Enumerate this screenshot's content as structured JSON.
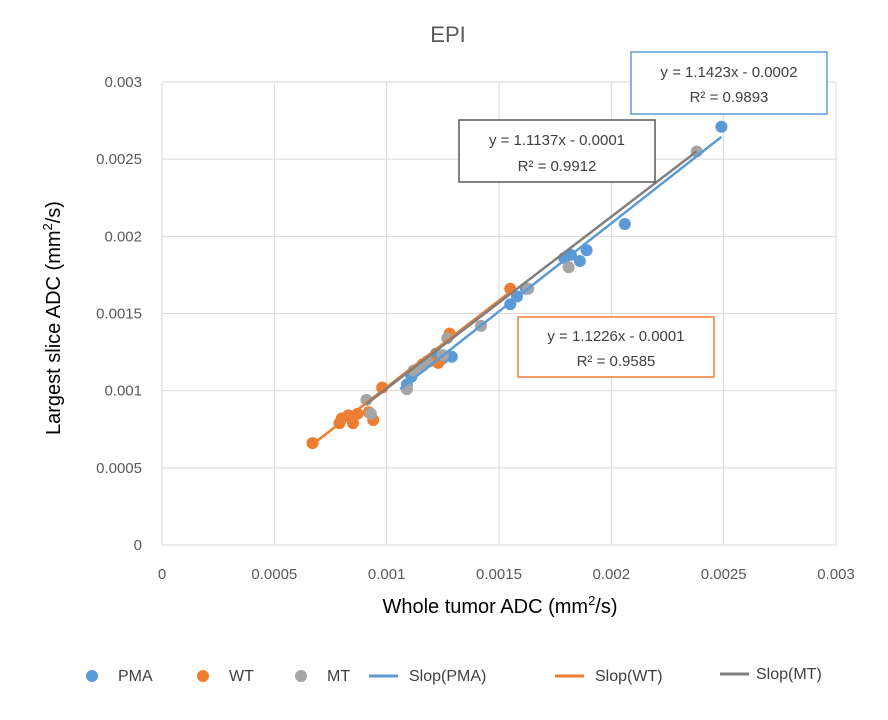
{
  "chart_data": {
    "type": "scatter",
    "title": "EPI",
    "xlabel": {
      "pre": "Whole tumor ADC (mm",
      "sup": "2",
      "post": "/s)"
    },
    "ylabel": {
      "pre": "Largest slice  ADC (mm",
      "sup": "2",
      "post": "/s)"
    },
    "xlim": [
      0,
      0.003
    ],
    "ylim": [
      0,
      0.003
    ],
    "x_ticks": [
      0,
      0.0005,
      0.001,
      0.0015,
      0.002,
      0.0025,
      0.003
    ],
    "x_tick_labels": [
      "0",
      "0.0005",
      "0.001",
      "0.0015",
      "0.002",
      "0.0025",
      "0.003"
    ],
    "y_ticks": [
      0,
      0.0005,
      0.001,
      0.0015,
      0.002,
      0.0025,
      0.003
    ],
    "y_tick_labels": [
      "0",
      "0.0005",
      "0.001",
      "0.0015",
      "0.002",
      "0.0025",
      "0.003"
    ],
    "grid": true,
    "legend_position": "bottom",
    "series": [
      {
        "name": "PMA",
        "color": "#5B9BD5",
        "x": [
          0.00109,
          0.00111,
          0.00122,
          0.00125,
          0.00129,
          0.00155,
          0.00158,
          0.00162,
          0.00179,
          0.00182,
          0.00186,
          0.00189,
          0.00206,
          0.00249
        ],
        "y": [
          0.00104,
          0.00109,
          0.00124,
          0.00121,
          0.00122,
          0.00156,
          0.00161,
          0.00166,
          0.00186,
          0.00188,
          0.00184,
          0.00191,
          0.00208,
          0.00271
        ]
      },
      {
        "name": "WT",
        "color": "#ED7D31",
        "x": [
          0.00067,
          0.00079,
          0.0008,
          0.00083,
          0.00085,
          0.00087,
          0.00092,
          0.00094,
          0.00098,
          0.00116,
          0.00119,
          0.00123,
          0.00128,
          0.00155
        ],
        "y": [
          0.00066,
          0.00079,
          0.00082,
          0.00084,
          0.00079,
          0.00085,
          0.00086,
          0.00081,
          0.00102,
          0.00117,
          0.00119,
          0.00118,
          0.00137,
          0.00166
        ]
      },
      {
        "name": "MT",
        "color": "#A5A5A5",
        "x": [
          0.00091,
          0.00093,
          0.00109,
          0.00112,
          0.00116,
          0.00118,
          0.00125,
          0.00127,
          0.00142,
          0.00163,
          0.00181,
          0.00238
        ],
        "y": [
          0.00094,
          0.00085,
          0.00101,
          0.00113,
          0.00116,
          0.00119,
          0.00123,
          0.00134,
          0.00142,
          0.00166,
          0.0018,
          0.00255
        ]
      }
    ],
    "trendlines": [
      {
        "name": "Slop(PMA)",
        "color": "#5B9BD5",
        "slope": 1.1423,
        "intercept": -0.0002,
        "x_range": [
          0.00106,
          0.00249
        ],
        "equation": "y = 1.1423x - 0.0002",
        "r2": "R² = 0.9893"
      },
      {
        "name": "Slop(WT)",
        "color": "#ED7D31",
        "slope": 1.1226,
        "intercept": -0.0001,
        "x_range": [
          0.00067,
          0.00155
        ],
        "equation": "y = 1.1226x - 0.0001",
        "r2": "R² = 0.9585"
      },
      {
        "name": "Slop(MT)",
        "color": "#7F7F7F",
        "slope": 1.1137,
        "intercept": -0.0001,
        "x_range": [
          0.00091,
          0.00238
        ],
        "equation": "y = 1.1137x - 0.0001",
        "r2": "R² = 0.9912"
      }
    ]
  }
}
